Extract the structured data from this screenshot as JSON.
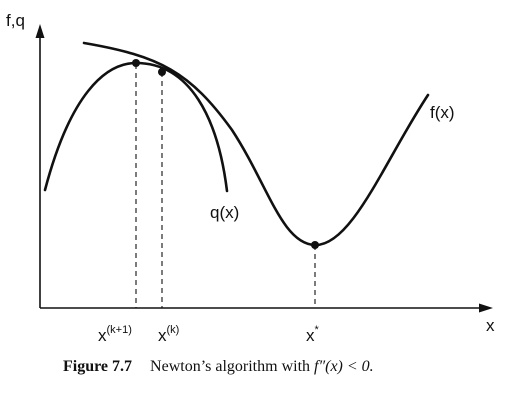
{
  "diagram": {
    "y_axis_label": "f,q",
    "x_axis_label": "x",
    "curve_f_label": "f(x)",
    "curve_q_label": "q(x)",
    "tick_xk1_base": "x",
    "tick_xk1_sup": "(k+1)",
    "tick_xk_base": "x",
    "tick_xk_sup": "(k)",
    "tick_xstar_base": "x",
    "tick_xstar_sup": "*"
  },
  "caption": {
    "figure_label": "Figure 7.7",
    "text": "Newton’s algorithm with",
    "math": "f″(x) < 0."
  }
}
